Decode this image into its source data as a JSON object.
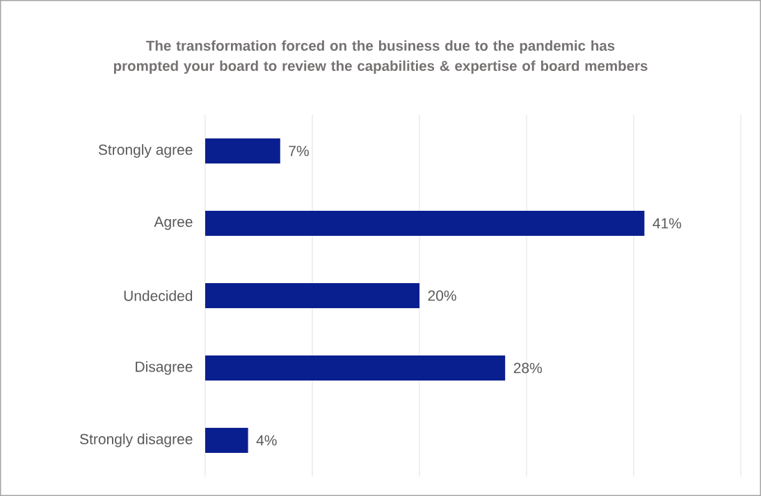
{
  "chart_data": {
    "type": "bar",
    "orientation": "horizontal",
    "title": "The transformation forced on the business due to the pandemic has prompted your board to review the capabilities & expertise of board members",
    "categories": [
      "Strongly agree",
      "Agree",
      "Undecided",
      "Disagree",
      "Strongly disagree"
    ],
    "values": [
      7,
      41,
      20,
      28,
      4
    ],
    "value_labels": [
      "7%",
      "41%",
      "20%",
      "28%",
      "4%"
    ],
    "color": "#0a1f8f",
    "xlim": [
      0,
      50
    ],
    "xticks": [
      {
        "value": 0,
        "label": null
      },
      {
        "value": 10,
        "label": null
      },
      {
        "value": 20,
        "label": null
      },
      {
        "value": 30,
        "label": null
      },
      {
        "value": 40,
        "label": null
      },
      {
        "value": 50,
        "label": null
      }
    ],
    "grid": "x",
    "tick_labels": "y"
  }
}
